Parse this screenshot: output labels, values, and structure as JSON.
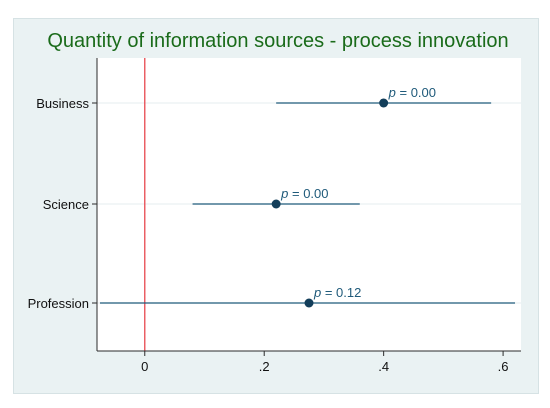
{
  "chart_data": {
    "type": "dot-whisker",
    "title": "Quantity of information sources - process innovation",
    "xlabel": "",
    "ylabel": "",
    "xlim": [
      -0.08,
      0.63
    ],
    "x_ticks": [
      {
        "value": 0,
        "label": "0"
      },
      {
        "value": 0.2,
        "label": ".2"
      },
      {
        "value": 0.4,
        "label": ".4"
      },
      {
        "value": 0.6,
        "label": ".6"
      }
    ],
    "reference_line": {
      "x": 0,
      "color": "#e8474f"
    },
    "grid": "horizontal",
    "colors": {
      "title": "#1a6b1a",
      "series": "#1f5a7a",
      "point": "#133e5a",
      "reference": "#e8474f",
      "grid": "#e6ecef",
      "plot_bg": "#ffffff",
      "outer_bg": "#eaf2f3"
    },
    "categories": [
      "Business",
      "Science",
      "Profession"
    ],
    "points": [
      {
        "category": "Business",
        "estimate": 0.4,
        "ci_low": 0.22,
        "ci_high": 0.58,
        "label": "p = 0.00"
      },
      {
        "category": "Science",
        "estimate": 0.22,
        "ci_low": 0.08,
        "ci_high": 0.36,
        "label": "p = 0.00"
      },
      {
        "category": "Profession",
        "estimate": 0.275,
        "ci_low": -0.075,
        "ci_high": 0.62,
        "label": "p = 0.12"
      }
    ]
  }
}
